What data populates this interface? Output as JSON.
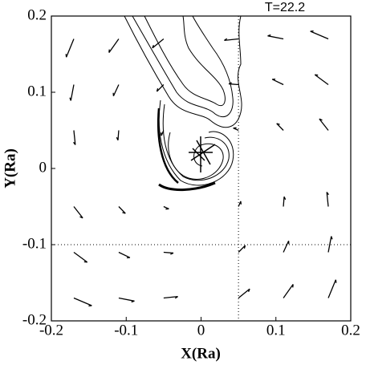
{
  "chart_data": {
    "type": "vector",
    "title": "T=22.2",
    "x_label": "X(Ra)",
    "y_label": "Y(Ra)",
    "xlim": [
      -0.2,
      0.2
    ],
    "ylim": [
      -0.2,
      0.2
    ],
    "xticks": [
      -0.2,
      -0.1,
      0,
      0.1,
      0.2
    ],
    "yticks": [
      -0.2,
      -0.1,
      0,
      0.1,
      0.2
    ],
    "ref_x": [
      0.05
    ],
    "ref_y": [
      -0.1
    ],
    "color": "#000000",
    "vectors": {
      "x": [
        -0.17,
        -0.11,
        -0.05,
        0.05,
        0.11,
        0.17,
        -0.17,
        -0.11,
        -0.05,
        0.05,
        0.11,
        0.17,
        -0.17,
        -0.11,
        -0.05,
        0.05,
        0.11,
        0.17,
        -0.17,
        -0.11,
        -0.05,
        0.05,
        0.11,
        0.17,
        -0.17,
        -0.11,
        -0.05,
        0.05,
        0.11,
        0.17,
        -0.17,
        -0.11,
        -0.05,
        0.05,
        0.11,
        0.17
      ],
      "y": [
        -0.17,
        -0.17,
        -0.17,
        -0.17,
        -0.17,
        -0.17,
        -0.11,
        -0.11,
        -0.11,
        -0.11,
        -0.11,
        -0.11,
        -0.05,
        -0.05,
        -0.05,
        -0.05,
        -0.05,
        -0.05,
        0.05,
        0.05,
        0.05,
        0.05,
        0.05,
        0.05,
        0.11,
        0.11,
        0.11,
        0.11,
        0.11,
        0.11,
        0.17,
        0.17,
        0.17,
        0.17,
        0.17,
        0.17
      ],
      "u": [
        0.024,
        0.021,
        0.019,
        0.015,
        0.013,
        0.01,
        0.018,
        0.015,
        0.013,
        0.009,
        0.007,
        0.004,
        0.012,
        0.009,
        0.007,
        0.003,
        0.001,
        -0.002,
        0.002,
        -0.001,
        -0.003,
        -0.007,
        -0.009,
        -0.012,
        -0.004,
        -0.007,
        -0.009,
        -0.013,
        -0.015,
        -0.018,
        -0.01,
        -0.013,
        -0.015,
        -0.019,
        -0.021,
        -0.024
      ],
      "v": [
        -0.01,
        -0.004,
        0.002,
        0.012,
        0.018,
        0.024,
        -0.013,
        -0.007,
        -0.001,
        0.009,
        0.015,
        0.021,
        -0.015,
        -0.009,
        -0.003,
        0.007,
        0.013,
        0.019,
        -0.019,
        -0.013,
        -0.007,
        0.003,
        0.009,
        0.015,
        -0.021,
        -0.015,
        -0.009,
        0.001,
        0.007,
        0.013,
        -0.024,
        -0.018,
        -0.012,
        -0.002,
        0.004,
        0.01
      ]
    }
  }
}
